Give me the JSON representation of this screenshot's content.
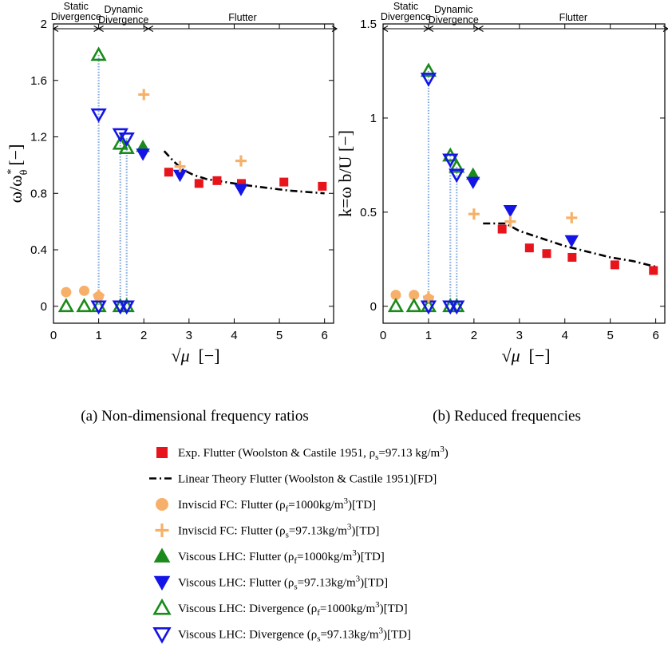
{
  "chart_data": [
    {
      "type": "scatter",
      "panel": "left",
      "caption": "(a) Non-dimensional frequency ratios",
      "ylabel": "ω/ω",
      "ylabel_sub": "θ",
      "ylabel_sup": "*",
      "ylabel_unit": "[−]",
      "xlabel_sym": "√μ",
      "xlabel_unit": "[−]",
      "xlim": [
        0,
        6.2
      ],
      "ylim": [
        -0.12,
        2
      ],
      "xticks": [
        "0",
        "1",
        "2",
        "3",
        "4",
        "5",
        "6"
      ],
      "yticks": [
        {
          "v": 0,
          "label": "0"
        },
        {
          "v": 0.4,
          "label": "0.4"
        },
        {
          "v": 0.8,
          "label": "0.8"
        },
        {
          "v": 1.2,
          "label": "1.2"
        },
        {
          "v": 1.6,
          "label": "1.6"
        },
        {
          "v": 2,
          "label": "2"
        }
      ],
      "series": {
        "exp_flutter": [
          [
            2.55,
            0.95
          ],
          [
            3.22,
            0.87
          ],
          [
            3.62,
            0.89
          ],
          [
            4.16,
            0.87
          ],
          [
            5.1,
            0.88
          ],
          [
            5.95,
            0.85
          ]
        ],
        "linear_theory": [
          [
            2.45,
            1.1
          ],
          [
            2.65,
            1.03
          ],
          [
            2.85,
            0.97
          ],
          [
            3.1,
            0.93
          ],
          [
            3.4,
            0.9
          ],
          [
            3.8,
            0.88
          ],
          [
            4.2,
            0.86
          ],
          [
            4.7,
            0.84
          ],
          [
            5.2,
            0.82
          ],
          [
            5.6,
            0.81
          ],
          [
            6.0,
            0.8
          ]
        ],
        "inviscid_fc_rho_f": [
          [
            0.28,
            0.1
          ],
          [
            0.68,
            0.11
          ],
          [
            1.0,
            0.07
          ]
        ],
        "inviscid_fc_rho_s": [
          [
            1.0,
            0.08
          ],
          [
            2.0,
            1.5
          ],
          [
            2.8,
            0.99
          ],
          [
            4.15,
            1.03
          ]
        ],
        "viscous_flutter_rho_f": [
          [
            1.98,
            1.13
          ]
        ],
        "viscous_flutter_rho_s": [
          [
            1.98,
            1.08
          ],
          [
            2.8,
            0.93
          ],
          [
            4.15,
            0.83
          ]
        ],
        "viscous_div_rho_f": [
          [
            0.28,
            0.0
          ],
          [
            0.68,
            0.0
          ],
          [
            1.0,
            1.78
          ],
          [
            1.0,
            0.0
          ],
          [
            1.48,
            1.15
          ],
          [
            1.48,
            0.0
          ],
          [
            1.62,
            1.12
          ],
          [
            1.62,
            0.0
          ]
        ],
        "viscous_div_rho_s": [
          [
            1.0,
            1.36
          ],
          [
            1.0,
            0.0
          ],
          [
            1.48,
            1.22
          ],
          [
            1.48,
            0.0
          ],
          [
            1.62,
            1.19
          ],
          [
            1.62,
            0.0
          ]
        ]
      },
      "dotted_links": [
        [
          1.0,
          1.78,
          0.0
        ],
        [
          1.48,
          1.22,
          0.0
        ],
        [
          1.62,
          1.19,
          0.0
        ]
      ],
      "regimes": [
        {
          "line1": "Static",
          "line2": "Divergence",
          "x0": 0,
          "x1": 1
        },
        {
          "line1": "",
          "line2": "Dynamic",
          "line3": "Divergence",
          "x0": 1,
          "x1": 2.1
        },
        {
          "line1": "",
          "line2": "Flutter",
          "x0": 2.1,
          "x1": 6.5
        }
      ]
    },
    {
      "type": "scatter",
      "panel": "right",
      "caption": "(b) Reduced frequencies",
      "ylabel": "k=ω b/U [−]",
      "xlabel_sym": "√μ",
      "xlabel_unit": "[−]",
      "xlim": [
        0,
        6.2
      ],
      "ylim": [
        -0.09,
        1.5
      ],
      "xticks": [
        "0",
        "1",
        "2",
        "3",
        "4",
        "5",
        "6"
      ],
      "yticks": [
        {
          "v": 0,
          "label": "0"
        },
        {
          "v": 0.5,
          "label": "0.5"
        },
        {
          "v": 1,
          "label": "1"
        },
        {
          "v": 1.5,
          "label": "1.5"
        }
      ],
      "series": {
        "exp_flutter": [
          [
            2.62,
            0.41
          ],
          [
            3.22,
            0.31
          ],
          [
            3.6,
            0.28
          ],
          [
            4.16,
            0.26
          ],
          [
            5.1,
            0.22
          ],
          [
            5.95,
            0.19
          ]
        ],
        "linear_theory": [
          [
            2.2,
            0.44
          ],
          [
            2.7,
            0.44
          ],
          [
            3.0,
            0.4
          ],
          [
            3.5,
            0.36
          ],
          [
            4.0,
            0.32
          ],
          [
            4.5,
            0.29
          ],
          [
            5.0,
            0.26
          ],
          [
            5.5,
            0.24
          ],
          [
            6.0,
            0.21
          ]
        ],
        "inviscid_fc_rho_f": [
          [
            0.28,
            0.06
          ],
          [
            0.68,
            0.06
          ],
          [
            1.0,
            0.04
          ]
        ],
        "inviscid_fc_rho_s": [
          [
            1.0,
            0.05
          ],
          [
            2.0,
            0.49
          ],
          [
            2.8,
            0.45
          ],
          [
            4.15,
            0.47
          ]
        ],
        "viscous_flutter_rho_f": [
          [
            1.98,
            0.7
          ]
        ],
        "viscous_flutter_rho_s": [
          [
            1.98,
            0.66
          ],
          [
            2.8,
            0.51
          ],
          [
            4.15,
            0.35
          ]
        ],
        "viscous_div_rho_f": [
          [
            0.28,
            0.0
          ],
          [
            0.68,
            0.0
          ],
          [
            1.0,
            1.25
          ],
          [
            1.0,
            0.0
          ],
          [
            1.48,
            0.8
          ],
          [
            1.48,
            0.0
          ],
          [
            1.62,
            0.74
          ],
          [
            1.62,
            0.0
          ]
        ],
        "viscous_div_rho_s": [
          [
            1.0,
            1.21
          ],
          [
            1.0,
            0.0
          ],
          [
            1.48,
            0.78
          ],
          [
            1.48,
            0.0
          ],
          [
            1.62,
            0.7
          ],
          [
            1.62,
            0.0
          ]
        ]
      },
      "dotted_links": [
        [
          1.0,
          1.25,
          0.0
        ],
        [
          1.48,
          0.8,
          0.0
        ],
        [
          1.62,
          0.74,
          0.0
        ]
      ],
      "regimes": [
        {
          "line1": "Static",
          "line2": "Divergence",
          "x0": 0,
          "x1": 1
        },
        {
          "line1": "",
          "line2": "Dynamic",
          "line3": "Divergence",
          "x0": 1,
          "x1": 2.1
        },
        {
          "line1": "",
          "line2": "Flutter",
          "x0": 2.1,
          "x1": 6.5
        }
      ]
    }
  ],
  "legend": [
    {
      "key": "exp_flutter",
      "marker": "square-filled",
      "color": "#e8141c",
      "text": "Exp. Flutter (Woolston & Castile 1951, ρ",
      "sub": "s",
      "text2": "=97.13 kg/m",
      "sup": "3",
      "text3": ")"
    },
    {
      "key": "linear_theory",
      "marker": "dashdot",
      "color": "#000000",
      "text": "Linear Theory Flutter (Woolston & Castile 1951)[FD]",
      "sub": "",
      "text2": "",
      "sup": "",
      "text3": ""
    },
    {
      "key": "inviscid_fc_rho_f",
      "marker": "circle-filled",
      "color": "#f7b069",
      "text": "Inviscid FC: Flutter (ρ",
      "sub": "f",
      "text2": "=1000kg/m",
      "sup": "3",
      "text3": ")[TD]"
    },
    {
      "key": "inviscid_fc_rho_s",
      "marker": "plus",
      "color": "#f7b069",
      "text": "Inviscid FC: Flutter (ρ",
      "sub": "s",
      "text2": "=97.13kg/m",
      "sup": "3",
      "text3": ")[TD]"
    },
    {
      "key": "viscous_flutter_rho_f",
      "marker": "triangle-up-filled",
      "color": "#1a8a1a",
      "text": "Viscous LHC: Flutter (ρ",
      "sub": "f",
      "text2": "=1000kg/m",
      "sup": "3",
      "text3": ")[TD]"
    },
    {
      "key": "viscous_flutter_rho_s",
      "marker": "triangle-down-filled",
      "color": "#1414e6",
      "text": "Viscous LHC: Flutter (ρ",
      "sub": "s",
      "text2": "=97.13kg/m",
      "sup": "3",
      "text3": ")[TD]"
    },
    {
      "key": "viscous_div_rho_f",
      "marker": "triangle-up-open",
      "color": "#1a8a1a",
      "text": "Viscous LHC: Divergence (ρ",
      "sub": "f",
      "text2": "=1000kg/m",
      "sup": "3",
      "text3": ")[TD]"
    },
    {
      "key": "viscous_div_rho_s",
      "marker": "triangle-down-open",
      "color": "#1414e6",
      "text": "Viscous LHC: Divergence (ρ",
      "sub": "s",
      "text2": "=97.13kg/m",
      "sup": "3",
      "text3": ")[TD]"
    }
  ],
  "colors": {
    "red": "#e8141c",
    "orange": "#f7b069",
    "green": "#1a8a1a",
    "blue": "#1414e6",
    "dotted_link": "#7fa8e0"
  }
}
